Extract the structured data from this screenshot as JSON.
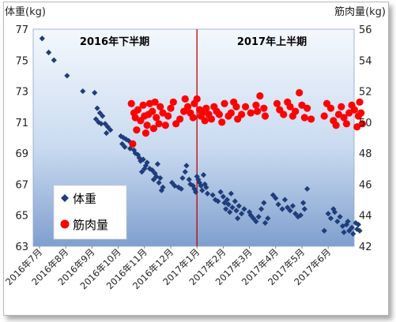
{
  "chart_data": {
    "type": "scatter",
    "title": "",
    "left_axis_label": "体重(kg)",
    "right_axis_label": "筋肉量(kg)",
    "ylim_left": [
      63,
      77
    ],
    "ylim_right": [
      42,
      56
    ],
    "left_ticks": [
      "63",
      "65",
      "67",
      "69",
      "71",
      "73",
      "75",
      "77"
    ],
    "right_ticks": [
      "42",
      "44",
      "46",
      "48",
      "50",
      "52",
      "54",
      "56"
    ],
    "x_ticks": [
      "2016年7月",
      "2016年8月",
      "2016年9月",
      "2016年10月",
      "2016年11月",
      "2016年12月",
      "2017年1月",
      "2017年2月",
      "2017年3月",
      "2017年4月",
      "2017年5月",
      "2017年6月"
    ],
    "periods": [
      "2016年下半期",
      "2017年上半期"
    ],
    "divider_month": "2017年1月",
    "grid": false,
    "legend_position": "bottom-left",
    "colors": {
      "weight": "#1f3d7a",
      "muscle": "#ff0000",
      "divider": "#c00000"
    },
    "series": [
      {
        "name": "体重",
        "axis": "left",
        "marker": "diamond",
        "points": [
          [
            0.1,
            76.4
          ],
          [
            0.35,
            75.5
          ],
          [
            0.55,
            75.0
          ],
          [
            1.05,
            74.0
          ],
          [
            1.65,
            73.0
          ],
          [
            2.1,
            72.9
          ],
          [
            2.2,
            71.9
          ],
          [
            2.3,
            71.6
          ],
          [
            2.4,
            71.4
          ],
          [
            2.15,
            71.2
          ],
          [
            2.25,
            71.0
          ],
          [
            2.35,
            70.9
          ],
          [
            2.5,
            70.9
          ],
          [
            2.6,
            70.7
          ],
          [
            2.7,
            70.5
          ],
          [
            2.55,
            70.3
          ],
          [
            3.1,
            70.1
          ],
          [
            3.2,
            70.0
          ],
          [
            3.3,
            69.9
          ],
          [
            3.4,
            69.8
          ],
          [
            3.15,
            69.6
          ],
          [
            3.25,
            69.4
          ],
          [
            3.45,
            69.3
          ],
          [
            3.55,
            69.6
          ],
          [
            3.6,
            69.2
          ],
          [
            3.65,
            69.0
          ],
          [
            3.75,
            68.9
          ],
          [
            3.8,
            68.7
          ],
          [
            3.85,
            68.5
          ],
          [
            3.95,
            68.6
          ],
          [
            4.05,
            68.2
          ],
          [
            4.1,
            68.4
          ],
          [
            4.2,
            68.0
          ],
          [
            4.3,
            67.9
          ],
          [
            4.4,
            67.7
          ],
          [
            4.45,
            67.5
          ],
          [
            4.35,
            67.3
          ],
          [
            4.55,
            67.1
          ],
          [
            4.6,
            67.4
          ],
          [
            4.7,
            66.8
          ],
          [
            4.65,
            66.6
          ],
          [
            4.5,
            68.3
          ],
          [
            4.0,
            68.0
          ],
          [
            3.9,
            67.8
          ],
          [
            5.05,
            67.1
          ],
          [
            5.15,
            66.9
          ],
          [
            5.3,
            66.8
          ],
          [
            5.4,
            66.7
          ],
          [
            5.45,
            67.4
          ],
          [
            5.55,
            67.8
          ],
          [
            5.6,
            68.2
          ],
          [
            5.7,
            67.3
          ],
          [
            5.75,
            67.0
          ],
          [
            5.85,
            66.9
          ],
          [
            5.9,
            66.7
          ],
          [
            5.95,
            66.5
          ],
          [
            6.0,
            67.5
          ],
          [
            6.05,
            67.3
          ],
          [
            6.1,
            67.1
          ],
          [
            6.15,
            66.9
          ],
          [
            6.2,
            66.6
          ],
          [
            6.25,
            67.6
          ],
          [
            6.3,
            67.0
          ],
          [
            6.35,
            66.8
          ],
          [
            6.4,
            66.4
          ],
          [
            6.6,
            66.3
          ],
          [
            6.7,
            66.0
          ],
          [
            6.8,
            65.9
          ],
          [
            6.9,
            66.5
          ],
          [
            7.0,
            66.2
          ],
          [
            7.05,
            65.8
          ],
          [
            7.1,
            65.4
          ],
          [
            7.15,
            66.0
          ],
          [
            7.2,
            65.7
          ],
          [
            7.25,
            65.2
          ],
          [
            7.3,
            66.4
          ],
          [
            7.35,
            65.5
          ],
          [
            7.45,
            65.9
          ],
          [
            7.5,
            65.3
          ],
          [
            7.55,
            64.8
          ],
          [
            7.6,
            65.6
          ],
          [
            7.7,
            65.1
          ],
          [
            7.8,
            65.4
          ],
          [
            8.0,
            65.2
          ],
          [
            8.05,
            65.0
          ],
          [
            8.15,
            64.8
          ],
          [
            8.25,
            64.6
          ],
          [
            8.35,
            64.9
          ],
          [
            8.45,
            65.4
          ],
          [
            8.55,
            65.8
          ],
          [
            8.6,
            64.5
          ],
          [
            8.7,
            64.8
          ],
          [
            8.9,
            66.3
          ],
          [
            9.0,
            66.1
          ],
          [
            9.1,
            65.7
          ],
          [
            9.25,
            65.4
          ],
          [
            9.35,
            66.0
          ],
          [
            9.45,
            65.5
          ],
          [
            9.55,
            65.3
          ],
          [
            9.65,
            65.6
          ],
          [
            9.75,
            65.1
          ],
          [
            9.85,
            64.9
          ],
          [
            9.95,
            65.0
          ],
          [
            10.05,
            65.8
          ],
          [
            10.1,
            65.4
          ],
          [
            10.2,
            66.7
          ],
          [
            10.85,
            64.0
          ],
          [
            11.0,
            65.1
          ],
          [
            11.1,
            64.8
          ],
          [
            11.2,
            65.4
          ],
          [
            11.25,
            65.2
          ],
          [
            11.35,
            64.6
          ],
          [
            11.45,
            64.9
          ],
          [
            11.55,
            64.3
          ],
          [
            11.6,
            63.9
          ],
          [
            11.7,
            64.4
          ],
          [
            11.75,
            64.6
          ],
          [
            11.8,
            64.0
          ],
          [
            11.9,
            64.2
          ],
          [
            11.95,
            63.8
          ],
          [
            12.05,
            64.5
          ],
          [
            12.1,
            64.1
          ],
          [
            12.15,
            64.4
          ],
          [
            12.2,
            64.0
          ]
        ]
      },
      {
        "name": "筋肉量",
        "axis": "right",
        "marker": "circle",
        "points": [
          [
            3.5,
            51.2
          ],
          [
            3.6,
            50.6
          ],
          [
            3.65,
            50.3
          ],
          [
            3.75,
            50.8
          ],
          [
            3.85,
            50.1
          ],
          [
            3.95,
            51.1
          ],
          [
            4.0,
            50.4
          ],
          [
            4.1,
            49.8
          ],
          [
            4.15,
            50.5
          ],
          [
            4.2,
            51.2
          ],
          [
            4.3,
            50.7
          ],
          [
            4.4,
            51.3
          ],
          [
            4.45,
            50.3
          ],
          [
            4.55,
            49.9
          ],
          [
            4.6,
            51.0
          ],
          [
            4.7,
            50.6
          ],
          [
            4.8,
            49.8
          ],
          [
            4.9,
            50.4
          ],
          [
            5.0,
            50.9
          ],
          [
            5.1,
            51.3
          ],
          [
            3.55,
            48.6
          ],
          [
            3.7,
            49.5
          ],
          [
            4.05,
            49.3
          ],
          [
            4.35,
            49.6
          ],
          [
            5.2,
            49.9
          ],
          [
            5.35,
            50.2
          ],
          [
            5.5,
            50.7
          ],
          [
            5.55,
            51.5
          ],
          [
            5.65,
            51.0
          ],
          [
            5.75,
            50.6
          ],
          [
            5.85,
            50.3
          ],
          [
            5.9,
            51.2
          ],
          [
            6.0,
            51.5
          ],
          [
            6.1,
            50.8
          ],
          [
            6.15,
            50.4
          ],
          [
            6.2,
            50.6
          ],
          [
            6.3,
            50.1
          ],
          [
            6.35,
            50.9
          ],
          [
            6.45,
            50.5
          ],
          [
            6.55,
            50.2
          ],
          [
            6.65,
            51.0
          ],
          [
            6.75,
            50.7
          ],
          [
            6.85,
            50.5
          ],
          [
            6.95,
            50.0
          ],
          [
            7.05,
            51.2
          ],
          [
            7.2,
            50.4
          ],
          [
            7.3,
            50.6
          ],
          [
            7.4,
            51.3
          ],
          [
            7.5,
            51.0
          ],
          [
            7.55,
            50.2
          ],
          [
            7.7,
            50.5
          ],
          [
            7.85,
            51.0
          ],
          [
            8.05,
            50.6
          ],
          [
            8.25,
            51.1
          ],
          [
            8.3,
            50.7
          ],
          [
            8.4,
            51.7
          ],
          [
            8.55,
            50.9
          ],
          [
            8.6,
            50.4
          ],
          [
            9.05,
            51.2
          ],
          [
            9.15,
            50.8
          ],
          [
            9.3,
            50.5
          ],
          [
            9.45,
            51.3
          ],
          [
            9.55,
            51.0
          ],
          [
            9.65,
            50.4
          ],
          [
            9.75,
            50.7
          ],
          [
            9.9,
            51.9
          ],
          [
            10.0,
            51.1
          ],
          [
            10.1,
            50.3
          ],
          [
            10.2,
            50.9
          ],
          [
            10.35,
            50.2
          ],
          [
            10.85,
            50.4
          ],
          [
            10.95,
            51.2
          ],
          [
            11.1,
            50.9
          ],
          [
            11.2,
            50.1
          ],
          [
            11.3,
            49.8
          ],
          [
            11.4,
            50.5
          ],
          [
            11.5,
            51.0
          ],
          [
            11.6,
            50.3
          ],
          [
            11.7,
            49.9
          ],
          [
            11.8,
            50.6
          ],
          [
            11.9,
            51.1
          ],
          [
            12.0,
            50.8
          ],
          [
            12.1,
            49.7
          ],
          [
            12.15,
            50.4
          ],
          [
            12.2,
            51.3
          ],
          [
            12.25,
            50.6
          ],
          [
            12.3,
            49.9
          ]
        ]
      }
    ]
  }
}
